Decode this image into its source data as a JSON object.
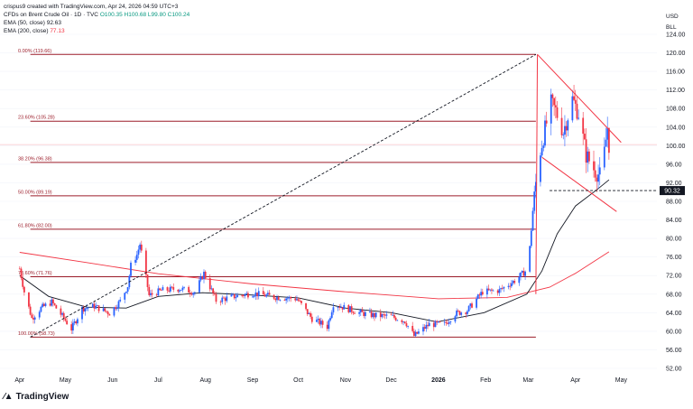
{
  "legend": {
    "creator": "crispus9 created with TradingView.com, Apr 24, 2026 04:59 UTC+3",
    "symbol": "CFDs on Brent Crude Oil · 1D · TVC",
    "ohlc": "O100.35 H100.68 L99.80 C100.24",
    "ema50_label": "EMA (50, close)",
    "ema50_value": "92.63",
    "ema200_label": "EMA (200, close)",
    "ema200_value": "77.13"
  },
  "unit_top": "USD",
  "unit_bottom": "BLL",
  "brand": "TradingView",
  "price_marker": "90.32",
  "colors": {
    "up": "#2962ff",
    "down": "#f23645",
    "ema50": "#131722",
    "ema200": "#f23645",
    "fib": "#9c1d2a",
    "channel": "#f23645"
  },
  "chart_data": {
    "type": "line",
    "y_ticks": [
      "124.00",
      "120.00",
      "116.00",
      "112.00",
      "108.00",
      "104.00",
      "100.00",
      "96.00",
      "92.00",
      "88.00",
      "84.00",
      "80.00",
      "76.00",
      "72.00",
      "68.00",
      "64.00",
      "60.00",
      "56.00",
      "52.00"
    ],
    "x_ticks": [
      "Apr",
      "May",
      "Jun",
      "Jul",
      "Aug",
      "Sep",
      "Oct",
      "Nov",
      "Dec",
      "2026",
      "Feb",
      "Mar",
      "Apr",
      "May"
    ],
    "ylim": [
      52,
      124
    ],
    "fib_levels": [
      {
        "label": "0.00% (119.66)",
        "price": 119.66
      },
      {
        "label": "23.60% (105.28)",
        "price": 105.28
      },
      {
        "label": "38.20% (96.38)",
        "price": 96.38
      },
      {
        "label": "50.00% (89.19)",
        "price": 89.19
      },
      {
        "label": "61.80% (82.00)",
        "price": 82.0
      },
      {
        "label": "78.60% (71.76)",
        "price": 71.76
      },
      {
        "label": "100.00% (58.73)",
        "price": 58.73
      }
    ],
    "price_series": [
      [
        "2025-04-01",
        73.5
      ],
      [
        "2025-04-04",
        68.5
      ],
      [
        "2025-04-09",
        62.8
      ],
      [
        "2025-04-15",
        65.0
      ],
      [
        "2025-04-22",
        66.3
      ],
      [
        "2025-04-30",
        62.8
      ],
      [
        "2025-05-05",
        60.5
      ],
      [
        "2025-05-12",
        64.9
      ],
      [
        "2025-05-20",
        65.4
      ],
      [
        "2025-05-30",
        63.9
      ],
      [
        "2025-06-06",
        66.5
      ],
      [
        "2025-06-11",
        69.8
      ],
      [
        "2025-06-13",
        74.2
      ],
      [
        "2025-06-17",
        76.5
      ],
      [
        "2025-06-19",
        78.8
      ],
      [
        "2025-06-23",
        71.5
      ],
      [
        "2025-06-25",
        67.7
      ],
      [
        "2025-07-03",
        68.8
      ],
      [
        "2025-07-15",
        69.2
      ],
      [
        "2025-07-25",
        68.4
      ],
      [
        "2025-07-31",
        72.5
      ],
      [
        "2025-08-08",
        66.6
      ],
      [
        "2025-08-20",
        67.5
      ],
      [
        "2025-09-01",
        68.2
      ],
      [
        "2025-09-15",
        67.4
      ],
      [
        "2025-09-30",
        67.0
      ],
      [
        "2025-10-10",
        62.7
      ],
      [
        "2025-10-20",
        61.0
      ],
      [
        "2025-10-24",
        65.9
      ],
      [
        "2025-11-10",
        64.0
      ],
      [
        "2025-11-20",
        63.4
      ],
      [
        "2025-12-01",
        63.2
      ],
      [
        "2025-12-10",
        62.2
      ],
      [
        "2025-12-16",
        59.0
      ],
      [
        "2025-12-26",
        61.5
      ],
      [
        "2026-01-05",
        61.5
      ],
      [
        "2026-01-12",
        63.8
      ],
      [
        "2026-01-20",
        64.5
      ],
      [
        "2026-01-30",
        68.5
      ],
      [
        "2026-02-10",
        68.8
      ],
      [
        "2026-02-20",
        70.9
      ],
      [
        "2026-02-27",
        72.9
      ],
      [
        "2026-03-02",
        78.0
      ],
      [
        "2026-03-04",
        86.0
      ],
      [
        "2026-03-06",
        92.0
      ],
      [
        "2026-03-09",
        99.0
      ],
      [
        "2026-03-12",
        103.5
      ],
      [
        "2026-03-16",
        109.0
      ],
      [
        "2026-03-19",
        107.5
      ],
      [
        "2026-03-24",
        103.0
      ],
      [
        "2026-03-30",
        110.0
      ],
      [
        "2026-04-03",
        107.0
      ],
      [
        "2026-04-08",
        98.0
      ],
      [
        "2026-04-13",
        95.0
      ],
      [
        "2026-04-17",
        93.5
      ],
      [
        "2026-04-20",
        98.5
      ],
      [
        "2026-04-22",
        104.0
      ],
      [
        "2026-04-23",
        100.24
      ]
    ],
    "ema50": [
      [
        "2025-04-01",
        72.0
      ],
      [
        "2025-04-20",
        67.5
      ],
      [
        "2025-05-15",
        65.2
      ],
      [
        "2025-06-10",
        65.0
      ],
      [
        "2025-07-01",
        67.5
      ],
      [
        "2025-07-30",
        68.3
      ],
      [
        "2025-09-01",
        67.8
      ],
      [
        "2025-10-01",
        67.2
      ],
      [
        "2025-11-01",
        65.0
      ],
      [
        "2025-12-01",
        64.0
      ],
      [
        "2025-12-31",
        62.0
      ],
      [
        "2026-01-31",
        64.0
      ],
      [
        "2026-02-28",
        68.0
      ],
      [
        "2026-03-10",
        73.0
      ],
      [
        "2026-03-20",
        81.0
      ],
      [
        "2026-04-01",
        87.0
      ],
      [
        "2026-04-15",
        90.5
      ],
      [
        "2026-04-23",
        92.63
      ]
    ],
    "ema200": [
      [
        "2025-04-01",
        77.0
      ],
      [
        "2025-05-15",
        74.8
      ],
      [
        "2025-07-01",
        72.4
      ],
      [
        "2025-09-01",
        70.2
      ],
      [
        "2025-11-01",
        68.5
      ],
      [
        "2026-01-01",
        67.0
      ],
      [
        "2026-02-15",
        67.3
      ],
      [
        "2026-03-15",
        69.5
      ],
      [
        "2026-04-01",
        72.5
      ],
      [
        "2026-04-23",
        77.13
      ]
    ]
  }
}
